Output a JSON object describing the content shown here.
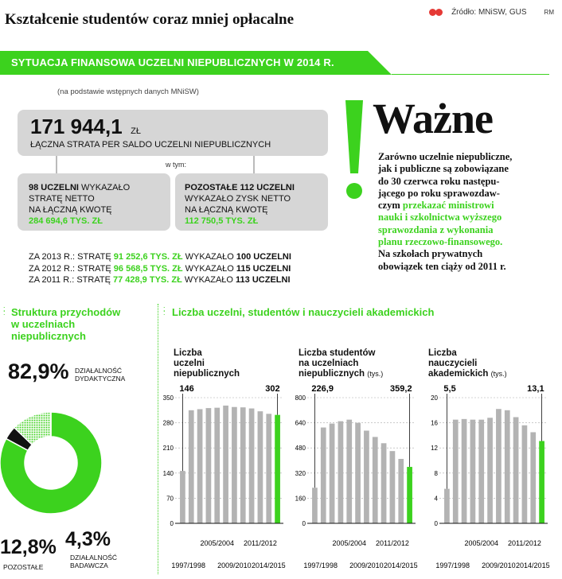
{
  "header": {
    "title": "Kształcenie studentów coraz mniej opłacalne",
    "source": "Źródło: MNiSW, GUS",
    "author": "RM"
  },
  "banner": {
    "title": "SYTUACJA FINANSOWA UCZELNI NIEPUBLICZNYCH W 2014 R.",
    "note": "(na podstawie wstępnych danych MNiSW)"
  },
  "colors": {
    "accent": "#3cd21e",
    "grey": "#d6d6d6",
    "bar": "#b3b3b3",
    "dark": "#111111"
  },
  "loss": {
    "value": "171 944,1",
    "unit": "ZŁ",
    "label": "ŁĄCZNA STRATA PER SALDO UCZELNI NIEPUBLICZNYCH",
    "of_which": "w tym:"
  },
  "box_left": {
    "l1_bold": "98 UCZELNI",
    "l1_rest": " WYKAZAŁO",
    "l2": "STRATĘ NETTO",
    "l3": "NA ŁĄCZNĄ KWOTĘ",
    "amount": "284 694,6 TYS. ZŁ"
  },
  "box_right": {
    "l1_bold": "POZOSTAŁE 112 UCZELNI",
    "l2": "WYKAZAŁO ZYSK NETTO",
    "l3": "NA ŁĄCZNĄ KWOTĘ",
    "amount": "112 750,5 TYS. ZŁ"
  },
  "history": [
    {
      "prefix": "ZA 2013 R.: STRATĘ ",
      "amount": "91 252,6 TYS. ZŁ",
      "mid": " WYKAZAŁO ",
      "count": "100 UCZELNI"
    },
    {
      "prefix": "ZA 2012 R.: STRATĘ ",
      "amount": "96 568,5 TYS. ZŁ",
      "mid": " WYKAZAŁO ",
      "count": "115 UCZELNI"
    },
    {
      "prefix": "ZA 2011 R.: STRATĘ ",
      "amount": "77 428,9 TYS.  ZŁ",
      "mid": " WYKAZAŁO ",
      "count": "113 UCZELNI"
    }
  ],
  "important": {
    "title": "Ważne",
    "lines": [
      {
        "text": "Zarówno uczelnie niepubliczne,",
        "green": false
      },
      {
        "text": "jak i publiczne są zobowiązane",
        "green": false
      },
      {
        "text": "do 30 czerwca roku następu-",
        "green": false
      },
      {
        "text": "jącego po roku sprawozdaw-",
        "green": false
      },
      {
        "text": "czym ",
        "green": false,
        "tail": "przekazać ministrowi"
      },
      {
        "text": "nauki i szkolnictwa wyższego",
        "green": true
      },
      {
        "text": "sprawozdania z wykonania",
        "green": true
      },
      {
        "text": "planu rzeczowo-finansowego.",
        "green": true
      },
      {
        "text": "Na szkołach prywatnych",
        "green": false
      },
      {
        "text": "obowiązek ten ciąży od 2011 r.",
        "green": false
      }
    ]
  },
  "structure": {
    "title_l1": "Struktura przychodów",
    "title_l2": "w uczelniach",
    "title_l3": "niepublicznych"
  },
  "counts": {
    "title": "Liczba uczelni, studentów i nauczycieli akademickich"
  },
  "chart_data": [
    {
      "type": "pie",
      "title": "Struktura przychodów w uczelniach niepublicznych",
      "slices": [
        {
          "label": "DZIAŁALNOŚĆ DYDAKTYCZNA",
          "pct_label": "82,9%",
          "value": 82.9,
          "color": "#3cd21e",
          "pattern": "solid"
        },
        {
          "label": "DZIAŁALNOŚĆ BADAWCZA",
          "pct_label": "4,3%",
          "value": 4.3,
          "color": "#111111",
          "pattern": "solid"
        },
        {
          "label": "POZOSTAŁE",
          "pct_label": "12,8%",
          "value": 12.8,
          "color": "#3cd21e",
          "pattern": "dotted"
        }
      ]
    },
    {
      "type": "bar",
      "title": "Liczba uczelni niepublicznych",
      "title_lines": [
        "Liczba",
        "uczelni",
        "niepublicznych"
      ],
      "unit": "",
      "ylim": [
        0,
        350
      ],
      "yticks": [
        0,
        70,
        140,
        210,
        280,
        350
      ],
      "ytick_labels": [
        "0",
        "70",
        "140",
        "210",
        "280",
        "350"
      ],
      "values": [
        146,
        315,
        318,
        321,
        322,
        328,
        324,
        323,
        320,
        312,
        305,
        302
      ],
      "first_label": "146",
      "last_label": "302",
      "x_top_labels": [
        "2005/2004",
        "2011/2012"
      ],
      "x_bottom_labels": [
        "1997/1998",
        "2009/2010",
        "2014/2015"
      ],
      "grid": true
    },
    {
      "type": "bar",
      "title": "Liczba studentów na uczelniach niepublicznych (tys.)",
      "title_lines": [
        "Liczba studentów",
        "na uczelniach",
        "niepublicznych"
      ],
      "unit": "(tys.)",
      "ylim": [
        0,
        800
      ],
      "yticks": [
        0,
        160,
        320,
        480,
        640,
        800
      ],
      "ytick_labels": [
        "0",
        "160",
        "320",
        "480",
        "640",
        "800"
      ],
      "values": [
        226.9,
        610,
        635,
        650,
        660,
        640,
        590,
        550,
        510,
        460,
        410,
        359.2
      ],
      "first_label": "226,9",
      "last_label": "359,2",
      "x_top_labels": [
        "2005/2004",
        "2011/2012"
      ],
      "x_bottom_labels": [
        "1997/1998",
        "2009/2010",
        "2014/2015"
      ],
      "grid": true
    },
    {
      "type": "bar",
      "title": "Liczba nauczycieli akademickich (tys.)",
      "title_lines": [
        "Liczba",
        "nauczycieli",
        "akademickich"
      ],
      "unit": "(tys.)",
      "ylim": [
        0,
        20
      ],
      "yticks": [
        0,
        4,
        8,
        12,
        16,
        20
      ],
      "ytick_labels": [
        "0",
        "4",
        "8",
        "12",
        "16",
        "20"
      ],
      "values": [
        5.5,
        16.5,
        16.6,
        16.5,
        16.5,
        16.8,
        18.2,
        18,
        16.9,
        15.6,
        14.5,
        13.1
      ],
      "first_label": "5,5",
      "last_label": "13,1",
      "x_top_labels": [
        "2005/2004",
        "2011/2012"
      ],
      "x_bottom_labels": [
        "1997/1998",
        "2009/2010",
        "2014/2015"
      ],
      "grid": true
    }
  ]
}
